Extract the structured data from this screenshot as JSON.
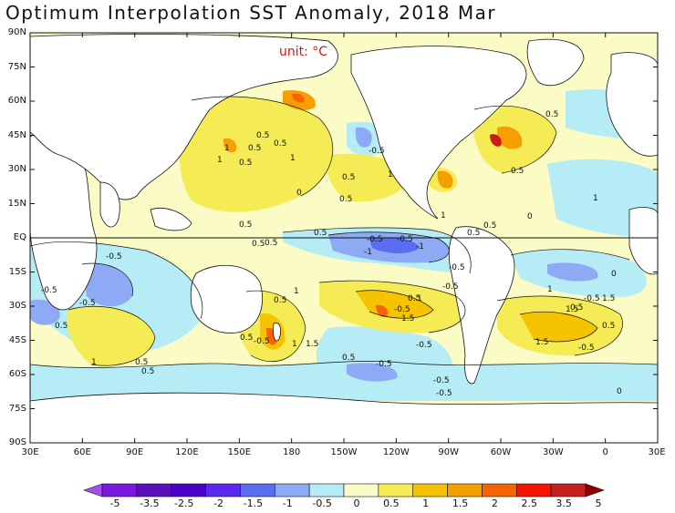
{
  "title": "Optimum Interpolation SST Anomaly, 2018 Mar",
  "unit_label": "unit: °C",
  "lat_labels": [
    "90N",
    "75N",
    "60N",
    "45N",
    "30N",
    "15N",
    "EQ",
    "15S",
    "30S",
    "45S",
    "60S",
    "75S",
    "90S"
  ],
  "lon_labels": [
    "30E",
    "60E",
    "90E",
    "120E",
    "150E",
    "180",
    "150W",
    "120W",
    "90W",
    "60W",
    "30W",
    "0",
    "30E"
  ],
  "colorbar": {
    "tick_labels": [
      "-5",
      "-3.5",
      "-2.5",
      "-2",
      "-1.5",
      "-1",
      "-0.5",
      "0",
      "0.5",
      "1",
      "1.5",
      "2",
      "2.5",
      "3.5",
      "5"
    ],
    "colors": [
      "#a050f0",
      "#7a18e0",
      "#5a10b8",
      "#4a00c8",
      "#5a28f0",
      "#5a6cf0",
      "#8eaaf5",
      "#b5ecf5",
      "#fbfbc5",
      "#f5ec55",
      "#f5c300",
      "#f5a000",
      "#f56400",
      "#f51400",
      "#c81e1e",
      "#8c0000"
    ]
  },
  "contour_labels": [
    "0.5",
    "0.5",
    "0.5",
    "1",
    "0.5",
    "1",
    "1",
    "-0.5",
    "0.5",
    "0.5",
    "1",
    "0.5",
    "0",
    "0.5",
    "0.5",
    "-0.5",
    "-0.5",
    "-1",
    "-1",
    "-0.5",
    "-0.5",
    "-0.5",
    "1",
    "0.5",
    "1.5",
    "0.5",
    "-0.5",
    "1",
    "1",
    "-0.5",
    "-0.5",
    "0.5",
    "0.5",
    "-0.5",
    "1",
    "1.5",
    "1",
    "0.5",
    "1.5",
    "0.5",
    "-0.5",
    "0",
    "1.5",
    "0.5",
    "-0.5",
    "0.5",
    "1",
    "1.5",
    "1",
    "0.5",
    "0.5",
    "0.5",
    "-0.5",
    "0.5",
    "-0.5",
    "-0.5",
    "0.5",
    "0",
    "-0.5",
    "0.5",
    "0"
  ]
}
